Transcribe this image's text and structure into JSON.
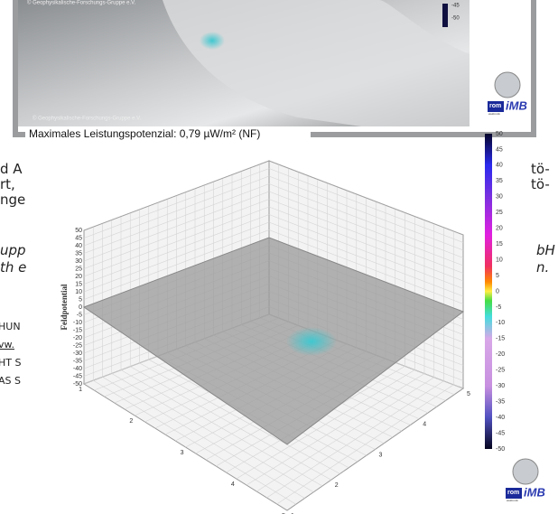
{
  "top_image": {
    "copyright_top": "© Geophysikalische-Forschungs-Gruppe e.V.",
    "copyright_bottom": "© Geophysikalische-Forschungs-Gruppe e.V.",
    "mini_colorbar_labels": [
      "-45",
      "-50"
    ],
    "logo": {
      "rom": "rom",
      "sub": "elektronik",
      "imb": "iMB"
    }
  },
  "caption": "Maximales Leistungspotenzial:  0,79  µW/m² (NF)",
  "background_text": {
    "left": [
      "d A",
      "rt,",
      "nge",
      "upp",
      "th e",
      "HUN",
      "vw.",
      "HT S",
      "AS S"
    ],
    "right": [
      "tö-",
      "tö-",
      "bH",
      "n."
    ]
  },
  "plot": {
    "z_label": "Feldpotential",
    "z_ticks": [
      "50",
      "45",
      "40",
      "35",
      "30",
      "25",
      "20",
      "15",
      "10",
      "5",
      "0",
      "-5",
      "-10",
      "-15",
      "-20",
      "-25",
      "-30",
      "-35",
      "-40",
      "-45",
      "-50"
    ],
    "x_ticks": [
      "1",
      "2",
      "3",
      "4",
      "5"
    ],
    "y_ticks": [
      "1",
      "2",
      "3",
      "4",
      "5"
    ]
  },
  "colorbar": {
    "ticks": [
      "50",
      "45",
      "40",
      "35",
      "30",
      "25",
      "20",
      "15",
      "10",
      "5",
      "0",
      "-5",
      "-10",
      "-15",
      "-20",
      "-25",
      "-30",
      "-35",
      "-40",
      "-45",
      "-50"
    ]
  },
  "logo": {
    "rom": "rom",
    "sub": "elektronik",
    "imb": "iMB"
  }
}
